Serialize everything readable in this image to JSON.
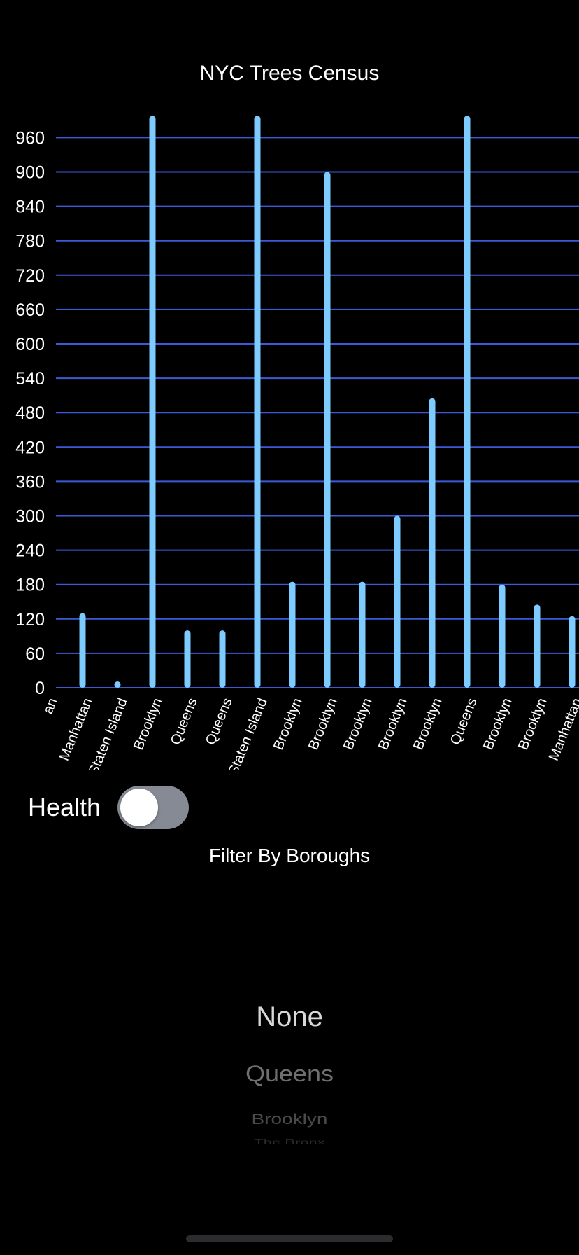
{
  "chart_data": {
    "type": "bar",
    "title": "NYC Trees Census",
    "xlabel": "",
    "ylabel": "",
    "ylim": [
      0,
      1000
    ],
    "yticks": [
      0,
      60,
      120,
      180,
      240,
      300,
      360,
      420,
      480,
      540,
      600,
      660,
      720,
      780,
      840,
      900,
      960
    ],
    "grid": true,
    "bar_color": "#7ecbff",
    "grid_color": "#3b5bd6",
    "partial_left_label": "an",
    "categories": [
      "Manhattan",
      "Staten Island",
      "Brooklyn",
      "Queens",
      "Queens",
      "Staten Island",
      "Brooklyn",
      "Brooklyn",
      "Brooklyn",
      "Brooklyn",
      "Brooklyn",
      "Queens",
      "Brooklyn",
      "Brooklyn",
      "Manhattan"
    ],
    "values": [
      130,
      8,
      998,
      100,
      100,
      998,
      185,
      900,
      185,
      300,
      505,
      998,
      180,
      145,
      125
    ]
  },
  "controls": {
    "health_label": "Health",
    "health_on": false,
    "filter_label": "Filter By Boroughs"
  },
  "picker": {
    "options": [
      "None",
      "Queens",
      "Brooklyn",
      "The Bronx"
    ],
    "selected": "None"
  },
  "colors": {
    "background": "#000000",
    "toggle_off": "#868a94"
  }
}
